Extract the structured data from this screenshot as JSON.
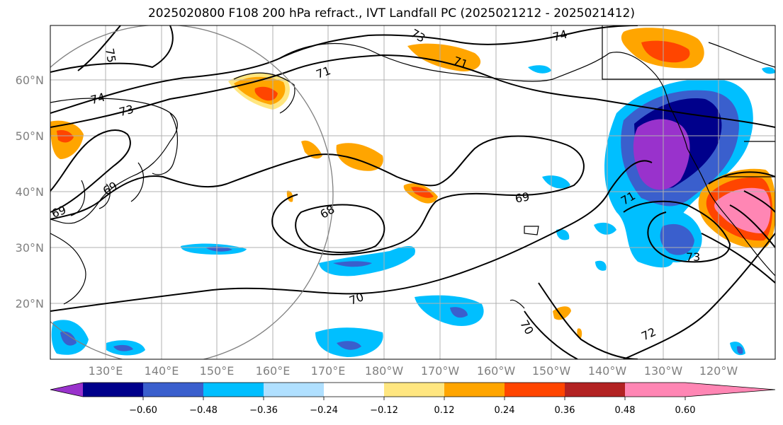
{
  "title": "2025020800 F108 200 hPa refract., IVT Landfall PC (2025021212 - 2025021412)",
  "latitude_labels": [
    "60°N",
    "50°N",
    "40°N",
    "30°N",
    "20°N"
  ],
  "longitude_labels": [
    "130°E",
    "140°E",
    "150°E",
    "160°E",
    "170°E",
    "180°W",
    "170°W",
    "160°W",
    "150°W",
    "140°W",
    "130°W",
    "120°W"
  ],
  "colorbar": {
    "tick_labels": [
      "−0.60",
      "−0.48",
      "−0.36",
      "−0.24",
      "−0.12",
      "0.12",
      "0.24",
      "0.36",
      "0.48",
      "0.60"
    ],
    "colors": [
      "#9932cc",
      "#00008b",
      "#3a5fcd",
      "#00bfff",
      "#b0e0ff",
      "#ffffff",
      "#ffe680",
      "#ffa500",
      "#ff4500",
      "#b22222",
      "#ff86b4"
    ]
  },
  "contour_labels": [
    "75",
    "74",
    "73",
    "73",
    "74",
    "71",
    "71",
    "69",
    "69",
    "68",
    "69",
    "71",
    "73",
    "70",
    "70",
    "72"
  ]
}
